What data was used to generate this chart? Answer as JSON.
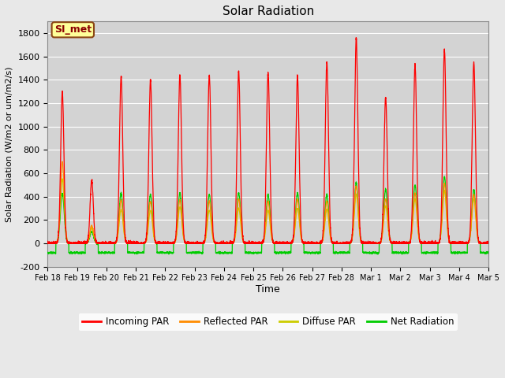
{
  "title": "Solar Radiation",
  "xlabel": "Time",
  "ylabel": "Solar Radiation (W/m2 or um/m2/s)",
  "ylim": [
    -200,
    1900
  ],
  "yticks": [
    -200,
    0,
    200,
    400,
    600,
    800,
    1000,
    1200,
    1400,
    1600,
    1800
  ],
  "date_labels": [
    "Feb 18",
    "Feb 19",
    "Feb 20",
    "Feb 21",
    "Feb 22",
    "Feb 23",
    "Feb 24",
    "Feb 25",
    "Feb 26",
    "Feb 27",
    "Feb 28",
    "Mar 1",
    "Mar 2",
    "Mar 3",
    "Mar 4",
    "Mar 5"
  ],
  "annotation_label": "SI_met",
  "annotation_bg": "#FFFF99",
  "annotation_border": "#8B4513",
  "line_colors": {
    "incoming": "#FF0000",
    "reflected": "#FF8C00",
    "diffuse": "#CCCC00",
    "net": "#00CC00"
  },
  "legend_labels": [
    "Incoming PAR",
    "Reflected PAR",
    "Diffuse PAR",
    "Net Radiation"
  ],
  "legend_colors": [
    "#FF0000",
    "#FF8C00",
    "#CCCC00",
    "#00CC00"
  ],
  "fig_bg": "#E8E8E8",
  "plot_bg": "#D3D3D3",
  "legend_bg": "#FFFFFF",
  "incoming_peaks": [
    1300,
    600,
    1430,
    1400,
    1440,
    1440,
    1470,
    1460,
    1430,
    1550,
    1760,
    1250,
    1530,
    1660,
    1550
  ],
  "reflected_peaks": [
    700,
    150,
    370,
    360,
    370,
    360,
    380,
    360,
    380,
    360,
    490,
    380,
    430,
    510,
    420
  ],
  "diffuse_peaks": [
    550,
    130,
    290,
    280,
    310,
    280,
    300,
    280,
    300,
    290,
    420,
    320,
    380,
    450,
    380
  ],
  "net_peaks": [
    430,
    100,
    430,
    420,
    430,
    420,
    430,
    420,
    430,
    420,
    520,
    460,
    500,
    570,
    460
  ],
  "night_net": -80,
  "sigma_in": 0.055,
  "sigma_other": 0.065,
  "n_days": 15,
  "pts_per_day": 288
}
